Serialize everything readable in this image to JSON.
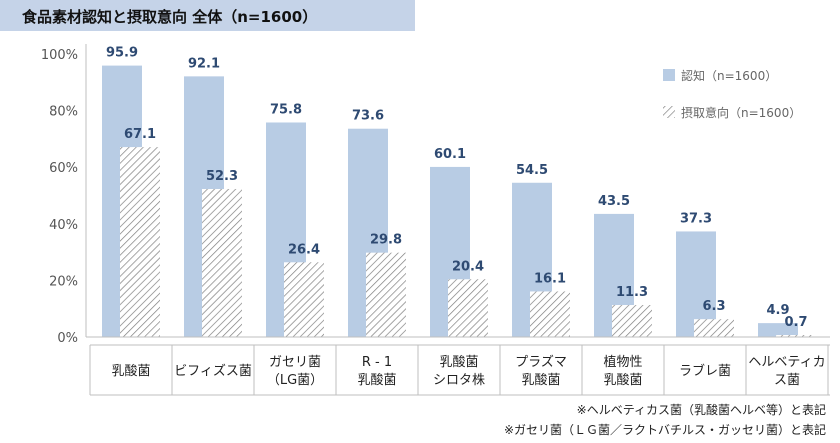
{
  "chart_data": {
    "type": "bar",
    "title": "食品素材認知と摂取意向 全体（n=1600）",
    "categories": [
      [
        "乳酸菌"
      ],
      [
        "ビフィズス菌"
      ],
      [
        "ガセリ菌",
        "（LG菌）"
      ],
      [
        "R - 1",
        "乳酸菌"
      ],
      [
        "乳酸菌",
        "シロタ株"
      ],
      [
        "プラズマ",
        "乳酸菌"
      ],
      [
        "植物性",
        "乳酸菌"
      ],
      [
        "ラブレ菌"
      ],
      [
        "ヘルベティカ",
        "ス菌"
      ]
    ],
    "series": [
      {
        "name": "認知（n=1600）",
        "values": [
          95.9,
          92.1,
          75.8,
          73.6,
          60.1,
          54.5,
          43.5,
          37.3,
          4.9
        ],
        "color": "#b8cce4",
        "pattern": "solid"
      },
      {
        "name": "摂取意向（n=1600）",
        "values": [
          67.1,
          52.3,
          26.4,
          29.8,
          20.4,
          16.1,
          11.3,
          6.3,
          0.7
        ],
        "color": "#7f7f7f",
        "pattern": "hatched"
      }
    ],
    "yticks": [
      "0%",
      "20%",
      "40%",
      "60%",
      "80%",
      "100%"
    ],
    "ylim": [
      0,
      100
    ],
    "grid": false,
    "legend": "top-right"
  },
  "footnotes": [
    "※ヘルベティカス菌（乳酸菌ヘルベ等）と表記",
    "※ガセリ菌（ＬＧ菌／ラクトバチルス・ガッセリ菌）と表記"
  ]
}
